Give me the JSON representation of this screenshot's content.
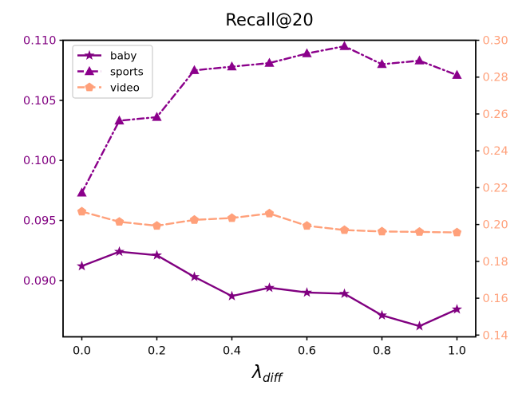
{
  "chart_data": {
    "type": "line",
    "title": "Recall@20",
    "xlabel": "λ_diff",
    "xlabel_symbol": "λ",
    "xlabel_subscript": "diff",
    "x": [
      0.0,
      0.1,
      0.2,
      0.3,
      0.4,
      0.5,
      0.6,
      0.7,
      0.8,
      0.9,
      1.0
    ],
    "xlim": [
      -0.05,
      1.05
    ],
    "x_tick_values": [
      0.0,
      0.2,
      0.4,
      0.6,
      0.8,
      1.0
    ],
    "x_tick_labels": [
      "0.0",
      "0.2",
      "0.4",
      "0.6",
      "0.8",
      "1.0"
    ],
    "grid": false,
    "axes": {
      "left": {
        "color": "#800080",
        "ylim": [
          0.08531,
          0.11
        ],
        "tick_values": [
          0.11,
          0.105,
          0.1,
          0.095,
          0.09
        ],
        "tick_labels": [
          "0.110",
          "0.105",
          "0.100",
          "0.095",
          "0.090"
        ]
      },
      "right": {
        "color": "#FFA07A",
        "ylim": [
          0.13905,
          0.3
        ],
        "tick_values": [
          0.3,
          0.28,
          0.26,
          0.24,
          0.22,
          0.2,
          0.18,
          0.16,
          0.14
        ],
        "tick_labels": [
          "0.30",
          "0.28",
          "0.26",
          "0.24",
          "0.22",
          "0.20",
          "0.18",
          "0.16",
          "0.14"
        ]
      }
    },
    "series": [
      {
        "name": "baby",
        "axis": "left",
        "color": "#800080",
        "linestyle": "solid",
        "marker": "star",
        "values": [
          0.0912,
          0.0924,
          0.0921,
          0.0903,
          0.0887,
          0.0894,
          0.089,
          0.0889,
          0.0871,
          0.0862,
          0.0876
        ]
      },
      {
        "name": "sports",
        "axis": "left",
        "color": "#8B008B",
        "linestyle": "dashdot",
        "marker": "triangle",
        "values": [
          0.0973,
          0.1033,
          0.1036,
          0.1075,
          0.1078,
          0.1081,
          0.1089,
          0.1095,
          0.108,
          0.1083,
          0.1071
        ]
      },
      {
        "name": "video",
        "axis": "right",
        "color": "#FFA07A",
        "linestyle": "dashed",
        "marker": "pentagon",
        "values": [
          0.207,
          0.2015,
          0.1993,
          0.2025,
          0.2035,
          0.206,
          0.1993,
          0.197,
          0.1962,
          0.196,
          0.1957
        ]
      }
    ],
    "legend": {
      "position": "upper left",
      "items": [
        "baby",
        "sports",
        "video"
      ]
    }
  }
}
